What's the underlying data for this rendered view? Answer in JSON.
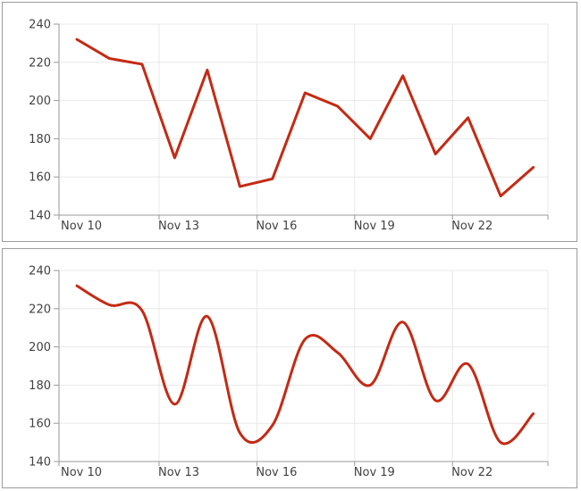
{
  "chart_data": [
    {
      "id": "line-chart",
      "type": "line",
      "title": "",
      "xlabel": "",
      "ylabel": "",
      "x": [
        "Nov 10",
        "Nov 11",
        "Nov 12",
        "Nov 13",
        "Nov 14",
        "Nov 15",
        "Nov 16",
        "Nov 17",
        "Nov 18",
        "Nov 19",
        "Nov 20",
        "Nov 21",
        "Nov 22",
        "Nov 23",
        "Nov 24"
      ],
      "values": [
        232,
        222,
        219,
        170,
        216,
        155,
        159,
        204,
        197,
        180,
        213,
        172,
        191,
        150,
        165
      ],
      "x_tick_labels": [
        "Nov 10",
        "Nov 13",
        "Nov 16",
        "Nov 19",
        "Nov 22"
      ],
      "y_tick_labels": [
        "140",
        "160",
        "180",
        "200",
        "220",
        "240"
      ],
      "ylim": [
        140,
        240
      ],
      "y_tick_step": 20,
      "grid": true,
      "legend": "none",
      "line_color": "#c42a14"
    },
    {
      "id": "spline-chart",
      "type": "spline",
      "title": "",
      "xlabel": "",
      "ylabel": "",
      "x": [
        "Nov 10",
        "Nov 11",
        "Nov 12",
        "Nov 13",
        "Nov 14",
        "Nov 15",
        "Nov 16",
        "Nov 17",
        "Nov 18",
        "Nov 19",
        "Nov 20",
        "Nov 21",
        "Nov 22",
        "Nov 23",
        "Nov 24"
      ],
      "values": [
        232,
        222,
        219,
        170,
        216,
        155,
        159,
        204,
        197,
        180,
        213,
        172,
        191,
        150,
        165
      ],
      "x_tick_labels": [
        "Nov 10",
        "Nov 13",
        "Nov 16",
        "Nov 19",
        "Nov 22"
      ],
      "y_tick_labels": [
        "140",
        "160",
        "180",
        "200",
        "220",
        "240"
      ],
      "ylim": [
        140,
        240
      ],
      "y_tick_step": 20,
      "grid": true,
      "legend": "none",
      "line_color": "#c42a14"
    }
  ],
  "colors": {
    "line": "#c42a14",
    "gridline": "#e8e8e8",
    "axis": "#9a9a9a",
    "tick": "#9a9a9a",
    "label": "#424242",
    "panel_border": "#9c9c9c",
    "background": "#ffffff"
  }
}
